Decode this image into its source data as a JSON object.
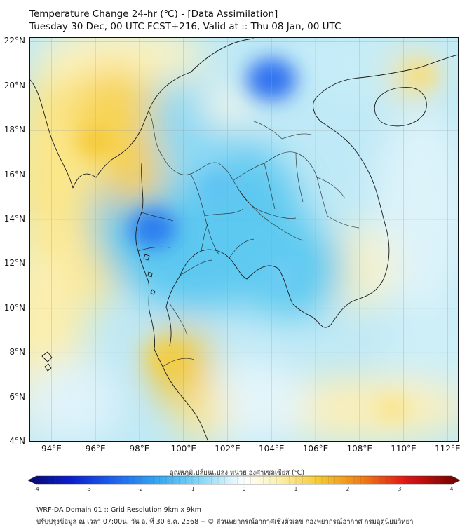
{
  "header": {
    "title_line1": "Temperature Change 24-hr (℃) - [Data Assimilation]",
    "title_line2": "Tuesday 30 Dec, 00 UTC FCST+216, Valid at :: Thu 08 Jan, 00 UTC"
  },
  "map": {
    "lat_labels": [
      "22°N",
      "20°N",
      "18°N",
      "16°N",
      "14°N",
      "12°N",
      "10°N",
      "8°N",
      "6°N",
      "4°N"
    ],
    "lon_labels": [
      "94°E",
      "96°E",
      "98°E",
      "100°E",
      "102°E",
      "104°E",
      "106°E",
      "108°E",
      "110°E",
      "112°E"
    ],
    "lat_values": [
      22,
      20,
      18,
      16,
      14,
      12,
      10,
      8,
      6,
      4
    ],
    "lon_values": [
      94,
      96,
      98,
      100,
      102,
      104,
      106,
      108,
      110,
      112
    ],
    "extent": {
      "lon_min": 93,
      "lon_max": 112.5,
      "lat_min": 4,
      "lat_max": 22.2
    },
    "field_blobs": [
      {
        "lon": 104.0,
        "lat": 20.3,
        "value": -2.4,
        "name": "northern-laos-cold-core"
      },
      {
        "lon": 98.6,
        "lat": 13.6,
        "value": -2.2,
        "name": "western-thailand-cold"
      },
      {
        "lon": 101.5,
        "lat": 15.5,
        "value": -1.2,
        "name": "central-thailand-cool"
      },
      {
        "lon": 104.5,
        "lat": 11.5,
        "value": -1.0,
        "name": "cambodia-cool"
      },
      {
        "lon": 96.0,
        "lat": 17.5,
        "value": 1.4,
        "name": "myanmar-warm"
      },
      {
        "lon": 99.2,
        "lat": 7.8,
        "value": 1.3,
        "name": "southern-thailand-warm"
      },
      {
        "lon": 110.8,
        "lat": 20.5,
        "value": 1.0,
        "name": "hainan-warm"
      },
      {
        "lon": 109.5,
        "lat": 5.5,
        "value": 0.9,
        "name": "south-china-sea-warm"
      },
      {
        "lon": 94.0,
        "lat": 13.0,
        "value": 0.8,
        "name": "andaman-warm"
      }
    ]
  },
  "colorbar": {
    "label": "อุณหภูมิเปลี่ยนแปลง หน่วย องศาเซลเซียส (℃)",
    "ticks": [
      "-4",
      "-3",
      "-2",
      "-1",
      "0",
      "1",
      "2",
      "3",
      "4"
    ],
    "tick_values": [
      -4,
      -3,
      -2,
      -1,
      0,
      1,
      2,
      3,
      4
    ],
    "min": -4,
    "max": 4,
    "stops": [
      {
        "v": -4.0,
        "c": "#08086e"
      },
      {
        "v": -3.2,
        "c": "#0a1ecf"
      },
      {
        "v": -2.4,
        "c": "#1e64ee"
      },
      {
        "v": -1.6,
        "c": "#34a8f2"
      },
      {
        "v": -0.8,
        "c": "#86d8f6"
      },
      {
        "v": 0.0,
        "c": "#ffffff"
      },
      {
        "v": 0.6,
        "c": "#fdf2b4"
      },
      {
        "v": 1.4,
        "c": "#f5c830"
      },
      {
        "v": 2.2,
        "c": "#f07c14"
      },
      {
        "v": 3.0,
        "c": "#e21414"
      },
      {
        "v": 4.0,
        "c": "#6e0000"
      }
    ]
  },
  "footer": {
    "line1": "WRF-DA Domain 01 :: Grid Resolution 9km x 9km",
    "line2": "ปรับปรุงข้อมูล ณ เวลา 07:00น. วัน อ. ที่ 30 ธ.ค. 2568 -- © ส่วนพยากรณ์อากาศเชิงตัวเลข กองพยากรณ์อากาศ กรมอุตุนิยมวิทยา"
  }
}
